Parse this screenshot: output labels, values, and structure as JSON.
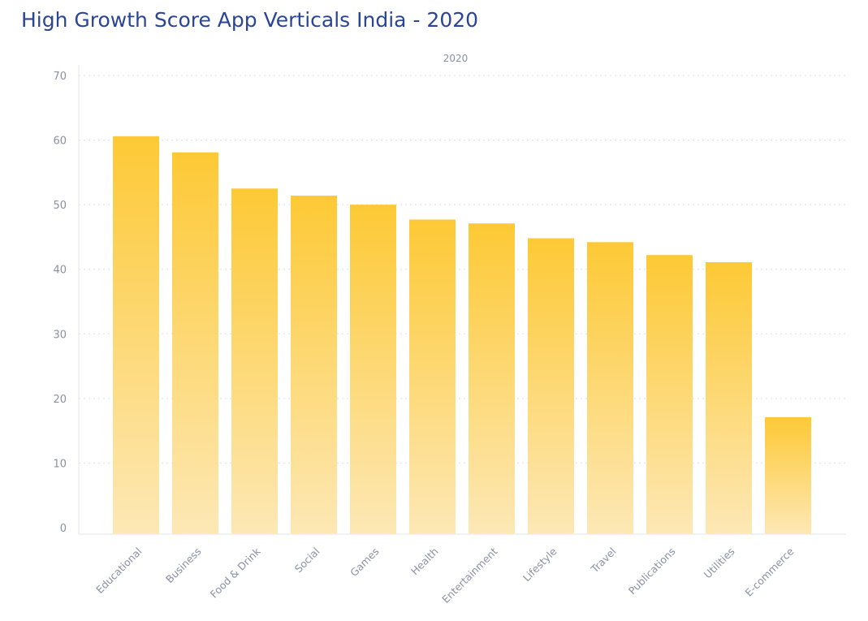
{
  "chart_data": {
    "type": "bar",
    "title": "High Growth Score App Verticals India - 2020",
    "series_label": "2020",
    "categories": [
      "Educational",
      "Business",
      "Food & Drink",
      "Social",
      "Games",
      "Health",
      "Entertainment",
      "Lifestyle",
      "Travel",
      "Publications",
      "Utilities",
      "E-commerce"
    ],
    "values": [
      60.6,
      58.1,
      52.5,
      51.4,
      50.0,
      47.7,
      47.1,
      44.8,
      44.2,
      42.2,
      41.1,
      17.1
    ],
    "ylim": [
      0,
      70
    ],
    "yticks": [
      0,
      10,
      20,
      30,
      40,
      50,
      60,
      70
    ],
    "grid": true,
    "bar_color_top": "#fdc935",
    "bar_color_bottom": "#fde8b6",
    "title_color": "#2b4596"
  }
}
